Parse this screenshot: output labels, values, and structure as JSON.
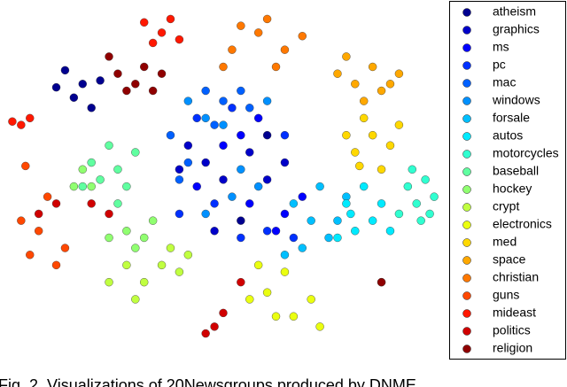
{
  "chart_data": {
    "type": "scatter",
    "legend": "right",
    "xlim": [
      0,
      100
    ],
    "ylim": [
      0,
      100
    ],
    "series": [
      {
        "name": "atheism",
        "color": "#00008f",
        "x": [
          18,
          14,
          20,
          16,
          22,
          12,
          54,
          60
        ],
        "y": [
          77,
          81,
          70,
          73,
          78,
          76,
          37,
          62
        ]
      },
      {
        "name": "graphics",
        "color": "#0000c8",
        "x": [
          46,
          60,
          50,
          56,
          42,
          64,
          48,
          40
        ],
        "y": [
          54,
          49,
          49,
          57,
          59,
          54,
          34,
          52
        ]
      },
      {
        "name": "ms",
        "color": "#0000ff",
        "x": [
          54,
          64,
          58,
          50,
          62,
          68,
          56,
          44
        ],
        "y": [
          62,
          39,
          67,
          59,
          34,
          44,
          42,
          47
        ]
      },
      {
        "name": "pc",
        "color": "#0030ff",
        "x": [
          44,
          60,
          52,
          48,
          64,
          40,
          66,
          54
        ],
        "y": [
          67,
          34,
          70,
          42,
          62,
          39,
          32,
          32
        ]
      },
      {
        "name": "mac",
        "color": "#0060ff",
        "x": [
          50,
          40,
          46,
          54,
          42,
          38,
          56,
          48
        ],
        "y": [
          72,
          49,
          75,
          75,
          54,
          62,
          70,
          65
        ]
      },
      {
        "name": "windows",
        "color": "#0090ff",
        "x": [
          46,
          52,
          42,
          50,
          58,
          54,
          46,
          60
        ],
        "y": [
          67,
          44,
          72,
          65,
          47,
          52,
          39,
          72
        ]
      },
      {
        "name": "forsale",
        "color": "#00bfff",
        "x": [
          66,
          76,
          70,
          72,
          68,
          78,
          64,
          74
        ],
        "y": [
          42,
          37,
          37,
          47,
          29,
          44,
          27,
          32
        ]
      },
      {
        "name": "autos",
        "color": "#00eaff",
        "x": [
          78,
          84,
          80,
          86,
          76,
          82,
          88,
          79
        ],
        "y": [
          42,
          37,
          34,
          42,
          32,
          47,
          34,
          39
        ]
      },
      {
        "name": "motorcycles",
        "color": "#30ffd0",
        "x": [
          94,
          96,
          92,
          98,
          90,
          95,
          93,
          97
        ],
        "y": [
          42,
          49,
          47,
          44,
          39,
          37,
          52,
          39
        ]
      },
      {
        "name": "baseball",
        "color": "#60ffa0",
        "x": [
          26,
          20,
          24,
          28,
          22,
          30,
          18,
          26
        ],
        "y": [
          52,
          54,
          59,
          47,
          49,
          57,
          47,
          42
        ]
      },
      {
        "name": "hockey",
        "color": "#90ff70",
        "x": [
          16,
          32,
          20,
          28,
          34,
          24,
          30,
          18
        ],
        "y": [
          47,
          32,
          47,
          34,
          37,
          32,
          29,
          52
        ]
      },
      {
        "name": "crypt",
        "color": "#c0ff40",
        "x": [
          36,
          28,
          32,
          40,
          24,
          38,
          30,
          42
        ],
        "y": [
          24,
          24,
          19,
          22,
          19,
          29,
          14,
          27
        ]
      },
      {
        "name": "electronics",
        "color": "#eaff10",
        "x": [
          66,
          60,
          70,
          64,
          56,
          72,
          62,
          58
        ],
        "y": [
          9,
          16,
          14,
          22,
          14,
          6,
          9,
          24
        ]
      },
      {
        "name": "med",
        "color": "#ffd800",
        "x": [
          80,
          84,
          82,
          88,
          78,
          86,
          81,
          90
        ],
        "y": [
          57,
          62,
          67,
          59,
          62,
          52,
          53,
          65
        ]
      },
      {
        "name": "space",
        "color": "#ffa800",
        "x": [
          80,
          84,
          76,
          88,
          82,
          78,
          86,
          90
        ],
        "y": [
          77,
          82,
          80,
          77,
          72,
          85,
          75,
          80
        ]
      },
      {
        "name": "christian",
        "color": "#ff7800",
        "x": [
          58,
          64,
          52,
          60,
          68,
          54,
          62,
          50
        ],
        "y": [
          92,
          87,
          87,
          96,
          91,
          94,
          82,
          82
        ]
      },
      {
        "name": "guns",
        "color": "#ff4800",
        "x": [
          6,
          10,
          8,
          12,
          4,
          14,
          86,
          5
        ],
        "y": [
          27,
          44,
          34,
          24,
          37,
          29,
          19,
          53
        ]
      },
      {
        "name": "mideast",
        "color": "#ff1800",
        "x": [
          36,
          4,
          32,
          40,
          6,
          2,
          38,
          34
        ],
        "y": [
          92,
          65,
          95,
          90,
          67,
          66,
          96,
          89
        ]
      },
      {
        "name": "politics",
        "color": "#d00000",
        "x": [
          24,
          48,
          20,
          8,
          46,
          54,
          12,
          50
        ],
        "y": [
          39,
          6,
          42,
          39,
          4,
          19,
          42,
          10
        ]
      },
      {
        "name": "religion",
        "color": "#8f0000",
        "x": [
          30,
          32,
          28,
          34,
          26,
          24,
          36,
          86
        ],
        "y": [
          77,
          82,
          75,
          75,
          80,
          85,
          80,
          19
        ]
      }
    ]
  },
  "caption": "Fig. 2. Visualizations of 20Newsgroups produced by DNME"
}
